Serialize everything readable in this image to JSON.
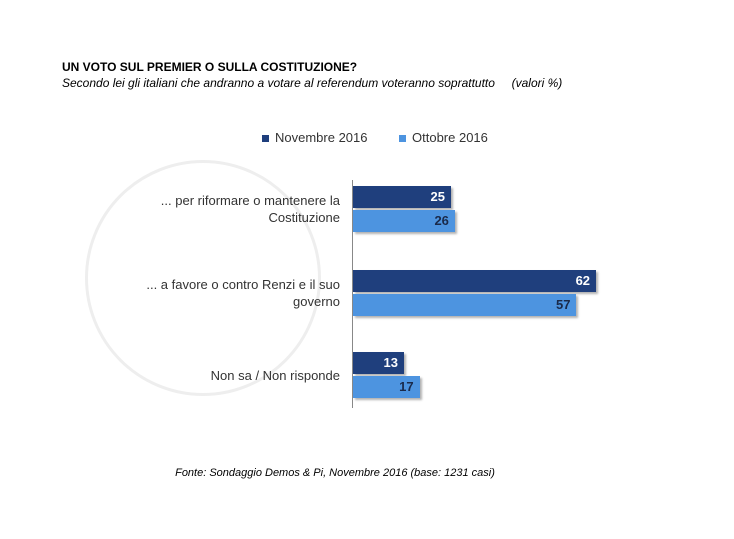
{
  "chart_data": {
    "type": "bar",
    "orientation": "horizontal",
    "title": "UN VOTO SUL PREMIER O SULLA COSTITUZIONE?",
    "subtitle": "Secondo lei gli italiani che andranno a votare al referendum voteranno soprattutto",
    "unit_note": "(valori %)",
    "categories": [
      "... per riformare  o mantenere la Costituzione",
      "... a favore  o contro Renzi e il suo governo",
      "Non sa / Non risponde"
    ],
    "series": [
      {
        "name": "Novembre 2016",
        "color": "#1f3f7d",
        "values": [
          25,
          62,
          13
        ]
      },
      {
        "name": "Ottobre 2016",
        "color": "#4d94e0",
        "values": [
          26,
          57,
          17
        ]
      }
    ],
    "legend": "top",
    "source": "Fonte: Sondaggio Demos & Pi, Novembre 2016 (base: 1231 casi)"
  }
}
